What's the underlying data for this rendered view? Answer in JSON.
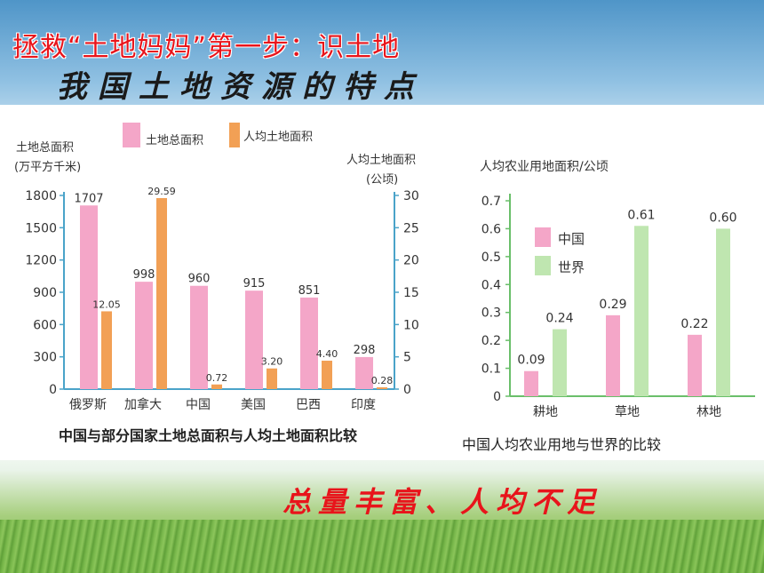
{
  "heading": {
    "line1": "拯救“土地妈妈”第一步：识土地",
    "line2": "我国土地资源的特点",
    "slogan": "总量丰富、人均不足"
  },
  "colors": {
    "pink": "#f4a6c8",
    "orange": "#f2a055",
    "green": "#bfe6b0",
    "title_red": "#e8141b"
  },
  "chart_data": [
    {
      "type": "bar",
      "title": "中国与部分国家土地总面积与人均土地面积比较",
      "categories": [
        "俄罗斯",
        "加拿大",
        "中国",
        "美国",
        "巴西",
        "印度"
      ],
      "series": [
        {
          "name": "土地总面积",
          "axis": "left",
          "values": [
            1707,
            998,
            960,
            915,
            851,
            298
          ],
          "labels": [
            "1707",
            "998",
            "960",
            "915",
            "851",
            "298"
          ]
        },
        {
          "name": "人均土地面积",
          "axis": "right",
          "values": [
            12.05,
            29.59,
            0.72,
            3.2,
            4.4,
            0.28
          ],
          "labels": [
            "12.05",
            "29.59",
            "0.72",
            "3.20",
            "4.40",
            "0.28"
          ]
        }
      ],
      "ylabel_left": [
        "土地总面积",
        "(万平方千米)"
      ],
      "ylabel_right": [
        "人均土地面积",
        "(公顷)"
      ],
      "ylim_left": [
        0,
        1800
      ],
      "ylim_right": [
        0,
        30
      ],
      "yticks_left": [
        "0",
        "300",
        "600",
        "900",
        "1200",
        "1500",
        "1800"
      ],
      "yticks_right": [
        "0",
        "5",
        "10",
        "15",
        "20",
        "25",
        "30"
      ],
      "legend_placement": "top"
    },
    {
      "type": "bar",
      "title": "中国人均农业用地与世界的比较",
      "categories": [
        "耕地",
        "草地",
        "林地"
      ],
      "series": [
        {
          "name": "中国",
          "values": [
            0.09,
            0.29,
            0.22
          ],
          "labels": [
            "0.09",
            "0.29",
            "0.22"
          ]
        },
        {
          "name": "世界",
          "values": [
            0.24,
            0.61,
            0.6
          ],
          "labels": [
            "0.24",
            "0.61",
            "0.60"
          ]
        }
      ],
      "ylabel": "人均农业用地面积/公顷",
      "ylim": [
        0,
        0.7
      ],
      "yticks": [
        "0",
        "0.1",
        "0.2",
        "0.3",
        "0.4",
        "0.5",
        "0.6",
        "0.7"
      ],
      "legend_placement": "top-left"
    }
  ]
}
